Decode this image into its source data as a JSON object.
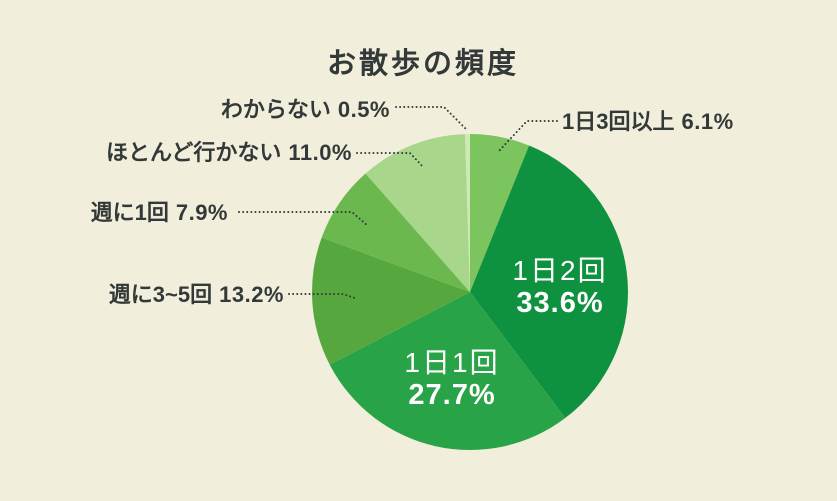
{
  "title": "お散歩の頻度",
  "colors": {
    "background": "#f1efdc",
    "text": "#333839",
    "inside_label_text": "#ffffff",
    "leader_line": "#333839"
  },
  "chart_data": {
    "type": "pie",
    "title": "お散歩の頻度",
    "value_unit": "%",
    "start_angle_deg": 0,
    "direction": "clockwise",
    "total": 100,
    "legend": "none",
    "slices": [
      {
        "label": "1日3回以上",
        "value": 6.1,
        "pct_text": "6.1%",
        "color": "#7cc45e",
        "label_placement": "outside-right"
      },
      {
        "label": "1日2回",
        "value": 33.6,
        "pct_text": "33.6%",
        "color": "#0f9240",
        "label_placement": "inside"
      },
      {
        "label": "1日1回",
        "value": 27.7,
        "pct_text": "27.7%",
        "color": "#29a347",
        "label_placement": "inside"
      },
      {
        "label": "週に3~5回",
        "value": 13.2,
        "pct_text": "13.2%",
        "color": "#57a73f",
        "label_placement": "outside-left"
      },
      {
        "label": "週に1回",
        "value": 7.9,
        "pct_text": "7.9%",
        "color": "#6ab84e",
        "label_placement": "outside-left"
      },
      {
        "label": "ほとんど行かない",
        "value": 11.0,
        "pct_text": "11.0%",
        "color": "#a8d78b",
        "label_placement": "outside-left"
      },
      {
        "label": "わからない",
        "value": 0.5,
        "pct_text": "0.5%",
        "color": "#cfe9b4",
        "label_placement": "outside-left"
      }
    ]
  }
}
